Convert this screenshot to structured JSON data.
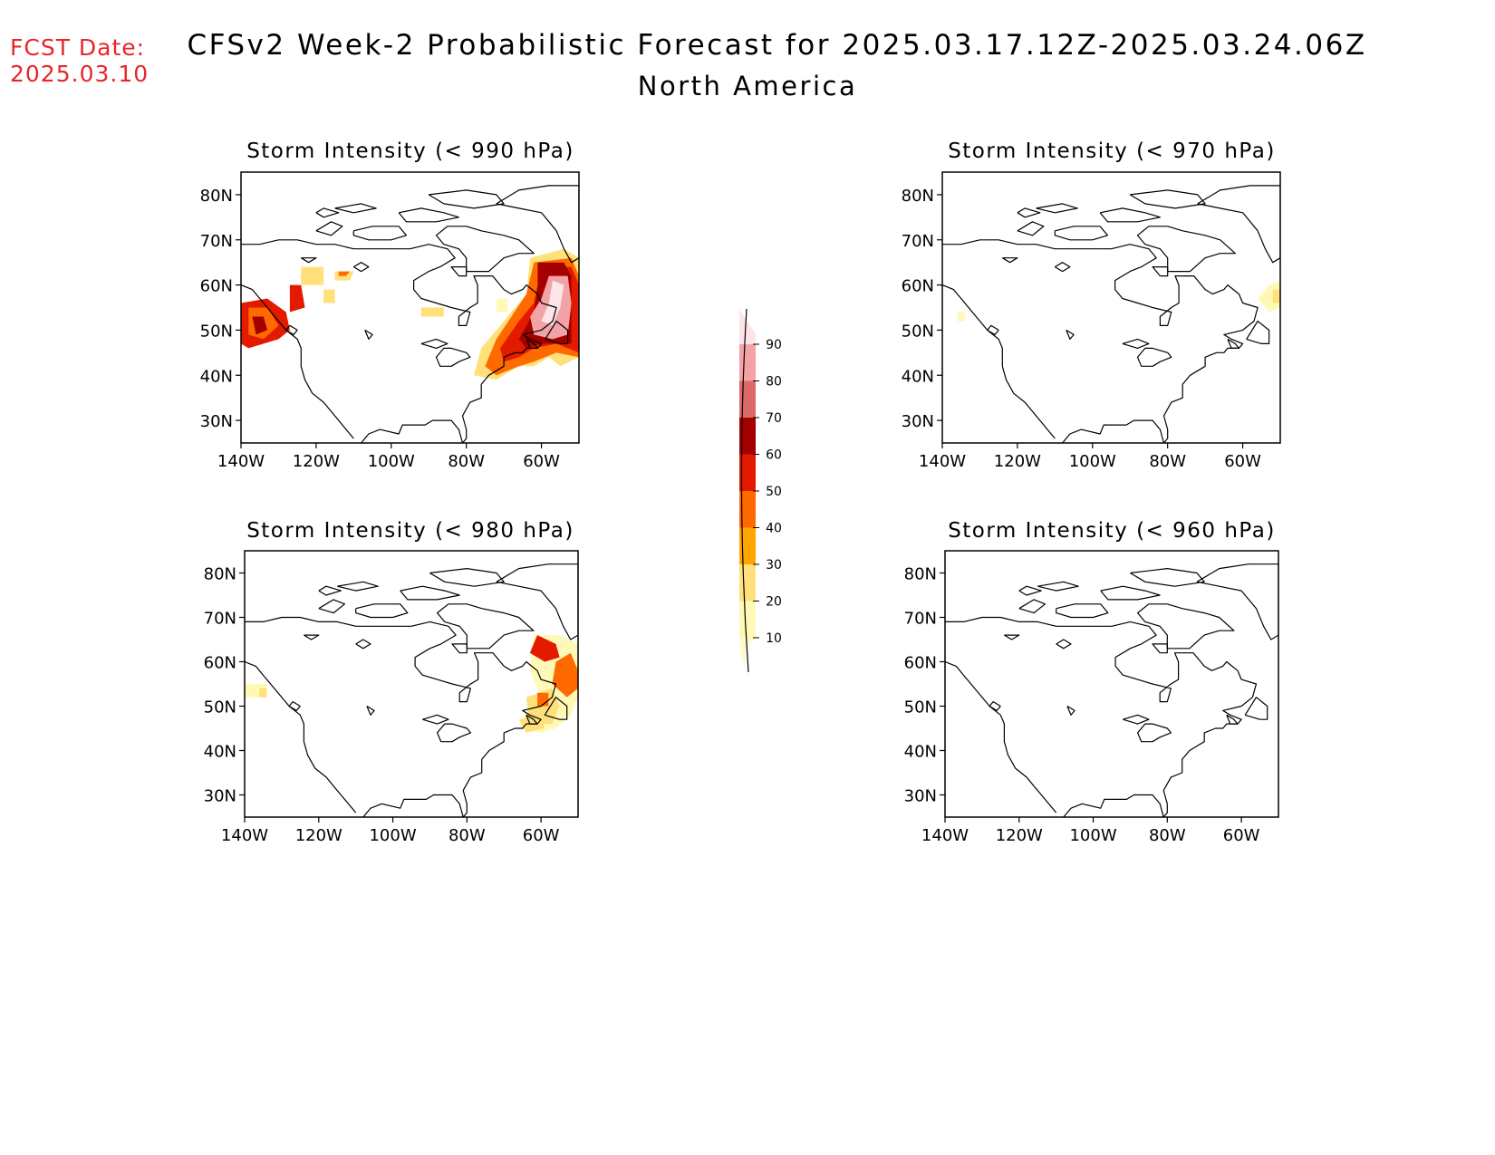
{
  "fcst_date_label": "FCST Date:",
  "fcst_date_value": "2025.03.10",
  "title": "CFSv2 Week-2 Probabilistic Forecast for 2025.03.17.12Z-2025.03.24.06Z",
  "subtitle": "North America",
  "colors": {
    "fcst_text": "#e8262a",
    "levels": [
      "#fff9b8",
      "#ffe07a",
      "#ffa500",
      "#ff6a00",
      "#e31a00",
      "#a50000",
      "#dd6a6a",
      "#f3a2a6",
      "#fde4e8"
    ]
  },
  "colorbar": {
    "labels": [
      "10",
      "20",
      "30",
      "40",
      "50",
      "60",
      "70",
      "80",
      "90"
    ]
  },
  "axes": {
    "lat_labels": [
      "80N",
      "70N",
      "60N",
      "50N",
      "40N",
      "30N"
    ],
    "lon_labels": [
      "140W",
      "120W",
      "100W",
      "80W",
      "60W"
    ],
    "lat_values": [
      80,
      70,
      60,
      50,
      40,
      30
    ],
    "lon_values": [
      -140,
      -120,
      -100,
      -80,
      -60
    ],
    "lon_range": [
      -140,
      -50
    ],
    "lat_range": [
      25,
      85
    ]
  },
  "panels": [
    {
      "title": "Storm Intensity (< 990 hPa)",
      "regions": [
        {
          "level": 5,
          "points": [
            [
              -140,
              56
            ],
            [
              -133,
              57
            ],
            [
              -128,
              54
            ],
            [
              -127,
              50
            ],
            [
              -130,
              48
            ],
            [
              -138,
              46
            ],
            [
              -140,
              47
            ]
          ]
        },
        {
          "level": 4,
          "points": [
            [
              -138,
              55
            ],
            [
              -133,
              55
            ],
            [
              -130,
              51
            ],
            [
              -134,
              48
            ],
            [
              -138,
              49
            ]
          ]
        },
        {
          "level": 6,
          "points": [
            [
              -137,
              53
            ],
            [
              -134,
              53
            ],
            [
              -133,
              50
            ],
            [
              -136,
              49
            ]
          ]
        },
        {
          "level": 5,
          "points": [
            [
              -127,
              60
            ],
            [
              -124,
              60
            ],
            [
              -123,
              55
            ],
            [
              -127,
              54
            ]
          ]
        },
        {
          "level": 2,
          "points": [
            [
              -124,
              64
            ],
            [
              -118,
              64
            ],
            [
              -118,
              60
            ],
            [
              -124,
              60
            ]
          ]
        },
        {
          "level": 2,
          "points": [
            [
              -115,
              63
            ],
            [
              -110,
              63
            ],
            [
              -111,
              61
            ],
            [
              -115,
              61
            ]
          ]
        },
        {
          "level": 4,
          "points": [
            [
              -114,
              63
            ],
            [
              -111,
              63
            ],
            [
              -112,
              62
            ],
            [
              -114,
              62
            ]
          ]
        },
        {
          "level": 2,
          "points": [
            [
              -118,
              59
            ],
            [
              -115,
              59
            ],
            [
              -115,
              56
            ],
            [
              -118,
              56
            ]
          ]
        },
        {
          "level": 2,
          "points": [
            [
              -92,
              55
            ],
            [
              -86,
              55
            ],
            [
              -86,
              53
            ],
            [
              -92,
              53
            ]
          ]
        },
        {
          "level": 1,
          "points": [
            [
              -72,
              57
            ],
            [
              -69,
              57
            ],
            [
              -69,
              54
            ],
            [
              -72,
              54
            ]
          ]
        },
        {
          "level": 2,
          "points": [
            [
              -63,
              66
            ],
            [
              -54,
              68
            ],
            [
              -50,
              66
            ],
            [
              -50,
              44
            ],
            [
              -55,
              42
            ],
            [
              -58,
              44
            ],
            [
              -62,
              42
            ],
            [
              -66,
              42
            ],
            [
              -72,
              39
            ],
            [
              -78,
              40
            ],
            [
              -76,
              46
            ],
            [
              -72,
              50
            ],
            [
              -68,
              54
            ],
            [
              -64,
              58
            ]
          ]
        },
        {
          "level": 4,
          "points": [
            [
              -62,
              65
            ],
            [
              -52,
              66
            ],
            [
              -50,
              62
            ],
            [
              -50,
              44
            ],
            [
              -56,
              45
            ],
            [
              -62,
              43
            ],
            [
              -66,
              42
            ],
            [
              -72,
              40
            ],
            [
              -75,
              42
            ],
            [
              -72,
              48
            ],
            [
              -68,
              53
            ],
            [
              -64,
              58
            ]
          ]
        },
        {
          "level": 5,
          "points": [
            [
              -60,
              64
            ],
            [
              -52,
              64
            ],
            [
              -50,
              60
            ],
            [
              -50,
              45
            ],
            [
              -56,
              47
            ],
            [
              -62,
              46
            ],
            [
              -66,
              44
            ],
            [
              -70,
              43
            ],
            [
              -71,
              46
            ],
            [
              -66,
              52
            ],
            [
              -62,
              56
            ]
          ]
        },
        {
          "level": 6,
          "points": [
            [
              -61,
              65
            ],
            [
              -54,
              65
            ],
            [
              -52,
              62
            ],
            [
              -52,
              47
            ],
            [
              -56,
              47
            ],
            [
              -60,
              47
            ],
            [
              -64,
              46
            ],
            [
              -66,
              48
            ],
            [
              -62,
              54
            ],
            [
              -61,
              60
            ]
          ]
        },
        {
          "level": 8,
          "points": [
            [
              -58,
              62
            ],
            [
              -53,
              62
            ],
            [
              -52,
              56
            ],
            [
              -53,
              49
            ],
            [
              -57,
              48
            ],
            [
              -62,
              49
            ],
            [
              -63,
              53
            ],
            [
              -60,
              57
            ]
          ]
        },
        {
          "level": 9,
          "points": [
            [
              -57,
              61
            ],
            [
              -54,
              60
            ],
            [
              -55,
              55
            ],
            [
              -57,
              51
            ],
            [
              -60,
              52
            ],
            [
              -58,
              56
            ]
          ]
        }
      ]
    },
    {
      "title": "Storm Intensity (< 970 hPa)",
      "regions": [
        {
          "level": 1,
          "points": [
            [
              -136,
              54
            ],
            [
              -134,
              54
            ],
            [
              -134,
              52
            ],
            [
              -136,
              52
            ]
          ]
        },
        {
          "level": 1,
          "points": [
            [
              -53,
              60
            ],
            [
              -50,
              61
            ],
            [
              -50,
              55
            ],
            [
              -53,
              54
            ],
            [
              -56,
              57
            ]
          ]
        },
        {
          "level": 2,
          "points": [
            [
              -52,
              59
            ],
            [
              -50,
              59
            ],
            [
              -50,
              56
            ],
            [
              -52,
              56
            ]
          ]
        }
      ]
    },
    {
      "title": "Storm Intensity (< 980 hPa)",
      "regions": [
        {
          "level": 1,
          "points": [
            [
              -140,
              55
            ],
            [
              -134,
              55
            ],
            [
              -134,
              52
            ],
            [
              -140,
              52
            ]
          ]
        },
        {
          "level": 2,
          "points": [
            [
              -136,
              54
            ],
            [
              -134,
              54
            ],
            [
              -134,
              52
            ],
            [
              -136,
              52
            ]
          ]
        },
        {
          "level": 1,
          "points": [
            [
              -62,
              66
            ],
            [
              -55,
              66
            ],
            [
              -50,
              64
            ],
            [
              -50,
              52
            ],
            [
              -52,
              48
            ],
            [
              -56,
              45
            ],
            [
              -60,
              44
            ],
            [
              -66,
              45
            ],
            [
              -64,
              49
            ],
            [
              -60,
              52
            ],
            [
              -63,
              58
            ]
          ]
        },
        {
          "level": 2,
          "points": [
            [
              -64,
              52
            ],
            [
              -57,
              54
            ],
            [
              -55,
              50
            ],
            [
              -57,
              46
            ],
            [
              -63,
              46
            ]
          ]
        },
        {
          "level": 4,
          "points": [
            [
              -56,
              60
            ],
            [
              -52,
              62
            ],
            [
              -50,
              58
            ],
            [
              -50,
              54
            ],
            [
              -53,
              52
            ],
            [
              -57,
              55
            ]
          ]
        },
        {
          "level": 5,
          "points": [
            [
              -61,
              66
            ],
            [
              -56,
              64
            ],
            [
              -55,
              61
            ],
            [
              -59,
              60
            ],
            [
              -63,
              62
            ]
          ]
        },
        {
          "level": 4,
          "points": [
            [
              -61,
              53
            ],
            [
              -58,
              53
            ],
            [
              -58,
              50
            ],
            [
              -61,
              50
            ]
          ]
        },
        {
          "level": 2,
          "points": [
            [
              -66,
              47
            ],
            [
              -60,
              48
            ],
            [
              -59,
              45
            ],
            [
              -64,
              44
            ]
          ]
        }
      ]
    },
    {
      "title": "Storm Intensity (< 960 hPa)",
      "regions": []
    }
  ]
}
